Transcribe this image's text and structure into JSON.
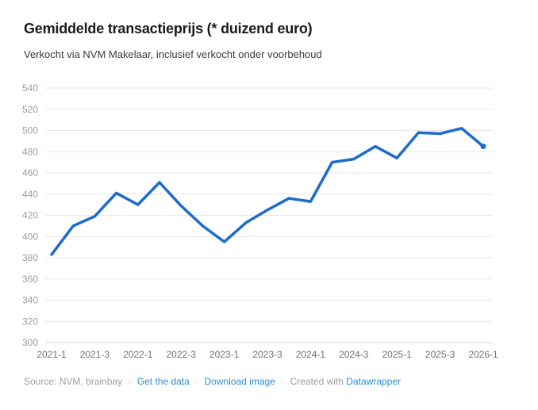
{
  "header": {
    "title": "Gemiddelde transactieprijs (* duizend euro)",
    "subtitle": "Verkocht via NVM Makelaar, inclusief verkocht onder voorbehoud"
  },
  "chart_data": {
    "type": "line",
    "title": "Gemiddelde transactieprijs (* duizend euro)",
    "subtitle": "Verkocht via NVM Makelaar, inclusief verkocht onder voorbehoud",
    "x": [
      "2021-1",
      "2021-2",
      "2021-3",
      "2021-4",
      "2022-1",
      "2022-2",
      "2022-3",
      "2022-4",
      "2023-1",
      "2023-2",
      "2023-3",
      "2023-4",
      "2024-1",
      "2024-2",
      "2024-3",
      "2024-4",
      "2025-1",
      "2025-2",
      "2025-3",
      "2025-4",
      "2026-1"
    ],
    "values": [
      383,
      410,
      419,
      441,
      430,
      451,
      429,
      410,
      395,
      413,
      425,
      436,
      433,
      470,
      473,
      485,
      474,
      498,
      497,
      502,
      485
    ],
    "x_tick_labels": [
      "2021-1",
      "2021-3",
      "2022-1",
      "2022-3",
      "2023-1",
      "2023-3",
      "2024-1",
      "2024-3",
      "2025-1",
      "2025-3",
      "2026-1"
    ],
    "x_tick_every": 2,
    "y_ticks": [
      300,
      320,
      340,
      360,
      380,
      400,
      420,
      440,
      460,
      480,
      500,
      520,
      540
    ],
    "ylim": [
      300,
      540
    ],
    "xlabel": "",
    "ylabel": "",
    "grid": true,
    "legend_position": "none",
    "line_color": "#1d6bce",
    "gridline_color": "#e7e7e7",
    "baseline_color": "#d2d2d2",
    "end_point_dot": true
  },
  "footer": {
    "source_prefix": "Source:",
    "source": "NVM, brainbay",
    "separator": "·",
    "link_get_data": "Get the data",
    "link_download_image": "Download image",
    "created_with": "Created with",
    "link_datawrapper": "Datawrapper",
    "link_color": "#2d8dd4"
  }
}
